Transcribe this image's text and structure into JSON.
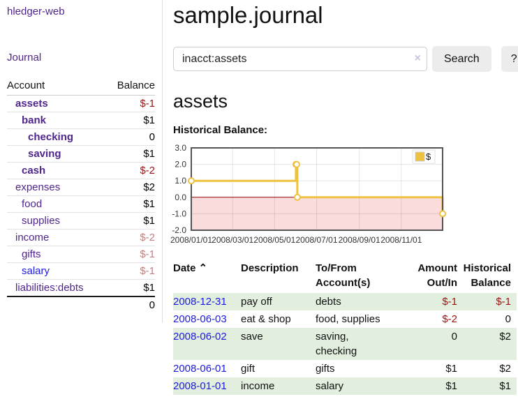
{
  "app": {
    "title": "hledger-web"
  },
  "colors": {
    "link_purple": "#50258e",
    "link_blue": "#1d1ae0",
    "neg_dark": "#9d1313",
    "neg_light": "#c08080",
    "row_green": "#e2efde",
    "chart_border": "#545454",
    "accent_gold": "#edc240"
  },
  "sidebar": {
    "journal_label": "Journal",
    "table": {
      "account_header": "Account",
      "balance_header": "Balance"
    },
    "accounts": [
      {
        "name": "assets",
        "depth": 1,
        "balance": "$-1",
        "emphasis": true
      },
      {
        "name": "bank",
        "depth": 2,
        "balance": "$1",
        "emphasis": true
      },
      {
        "name": "checking",
        "depth": 3,
        "balance": "0",
        "emphasis": true
      },
      {
        "name": "saving",
        "depth": 3,
        "balance": "$1",
        "emphasis": true
      },
      {
        "name": "cash",
        "depth": 2,
        "balance": "$-2",
        "emphasis": true
      },
      {
        "name": "expenses",
        "depth": 1,
        "balance": "$2"
      },
      {
        "name": "food",
        "depth": 2,
        "balance": "$1"
      },
      {
        "name": "supplies",
        "depth": 2,
        "balance": "$1"
      },
      {
        "name": "income",
        "depth": 1,
        "balance": "$-2"
      },
      {
        "name": "gifts",
        "depth": 2,
        "balance": "$-1"
      },
      {
        "name": "salary",
        "depth": 2,
        "balance": "$-1",
        "unvisited": true
      },
      {
        "name": "liabilities:debts",
        "depth": 1,
        "balance": "$1"
      }
    ],
    "total": "0"
  },
  "header": {
    "title": "sample.journal"
  },
  "search": {
    "value": "inacct:assets",
    "clear_icon": "×",
    "button_label": "Search",
    "help_label": "?"
  },
  "section": {
    "heading": "assets",
    "chart_label": "Historical Balance:"
  },
  "chart_data": {
    "type": "line",
    "step": true,
    "title": "Historical Balance:",
    "legend": {
      "label": "$",
      "position": "top-right"
    },
    "series": [
      {
        "name": "$",
        "color": "#edc240",
        "points": [
          [
            "2008-01-01",
            1
          ],
          [
            "2008-06-01",
            2
          ],
          [
            "2008-06-02",
            2
          ],
          [
            "2008-06-03",
            0
          ],
          [
            "2008-12-31",
            -1
          ]
        ]
      }
    ],
    "xlim": [
      "2008-01-01",
      "2008-12-31"
    ],
    "ylim": [
      -2,
      3
    ],
    "x_ticks": [
      {
        "date": "2008-01-01",
        "label": "2008/01/01"
      },
      {
        "date": "2008-03-01",
        "label": "2008/03/01"
      },
      {
        "date": "2008-05-01",
        "label": "2008/05/01"
      },
      {
        "date": "2008-07-01",
        "label": "2008/07/01"
      },
      {
        "date": "2008-09-01",
        "label": "2008/09/01"
      },
      {
        "date": "2008-11-01",
        "label": "2008/11/01"
      }
    ],
    "y_ticks": [
      {
        "value": 3,
        "label": "3.0"
      },
      {
        "value": 2,
        "label": "2.0"
      },
      {
        "value": 1,
        "label": "1.0"
      },
      {
        "value": 0,
        "label": "0.0"
      },
      {
        "value": -1,
        "label": "-1.0"
      },
      {
        "value": -2,
        "label": "-2.0"
      }
    ],
    "grid": true,
    "zero_line_color": "#8b0000",
    "negative_region_color": "#fbdcdc"
  },
  "transactions": {
    "headers": {
      "date": "Date",
      "sort_icon": "⌃",
      "description": "Description",
      "accounts": "To/From\nAccount(s)",
      "amount": "Amount\nOut/In",
      "balance": "Historical\nBalance"
    },
    "rows": [
      {
        "date": "2008-12-31",
        "description": "pay off",
        "accounts": "debts",
        "amount": "$-1",
        "balance": "$-1"
      },
      {
        "date": "2008-06-03",
        "description": "eat & shop",
        "accounts": "food, supplies",
        "amount": "$-2",
        "balance": "0"
      },
      {
        "date": "2008-06-02",
        "description": "save",
        "accounts": "saving,\nchecking",
        "amount": "0",
        "balance": "$2"
      },
      {
        "date": "2008-06-01",
        "description": "gift",
        "accounts": "gifts",
        "amount": "$1",
        "balance": "$2"
      },
      {
        "date": "2008-01-01",
        "description": "income",
        "accounts": "salary",
        "amount": "$1",
        "balance": "$1"
      }
    ]
  }
}
